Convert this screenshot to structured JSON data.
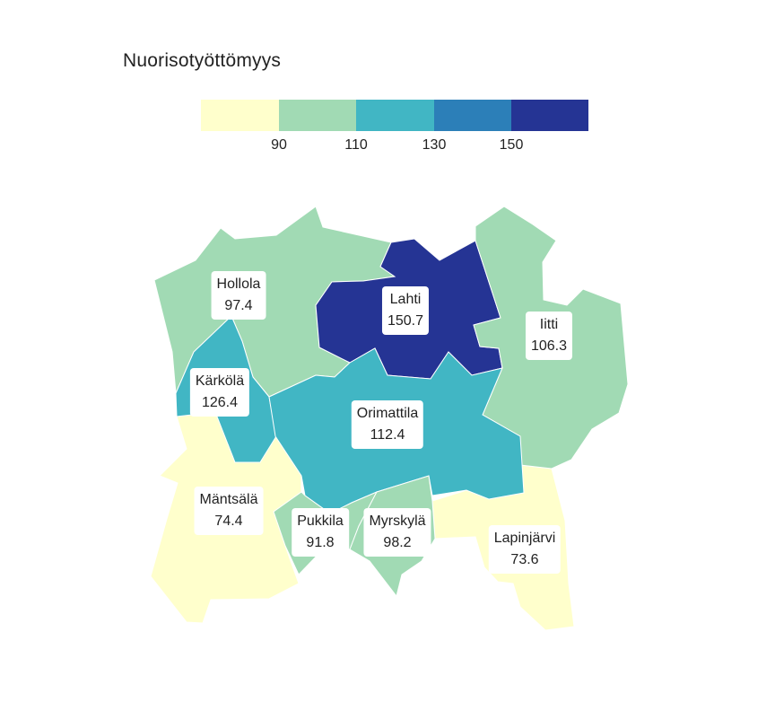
{
  "title": "Nuorisotyöttömyys",
  "legend": {
    "breaks": [
      "90",
      "110",
      "130",
      "150"
    ],
    "colors": [
      "#ffffcc",
      "#a1dab4",
      "#41b6c4",
      "#2c7fb8",
      "#253494"
    ]
  },
  "regions": [
    {
      "name": "Hollola",
      "value": "97.4",
      "color": "#a1dab4"
    },
    {
      "name": "Lahti",
      "value": "150.7",
      "color": "#253494"
    },
    {
      "name": "Iitti",
      "value": "106.3",
      "color": "#a1dab4"
    },
    {
      "name": "Kärkölä",
      "value": "126.4",
      "color": "#41b6c4"
    },
    {
      "name": "Orimattila",
      "value": "112.4",
      "color": "#41b6c4"
    },
    {
      "name": "Mäntsälä",
      "value": "74.4",
      "color": "#ffffcc"
    },
    {
      "name": "Pukkila",
      "value": "91.8",
      "color": "#a1dab4"
    },
    {
      "name": "Myrskylä",
      "value": "98.2",
      "color": "#a1dab4"
    },
    {
      "name": "Lapinjärvi",
      "value": "73.6",
      "color": "#ffffcc"
    }
  ]
}
